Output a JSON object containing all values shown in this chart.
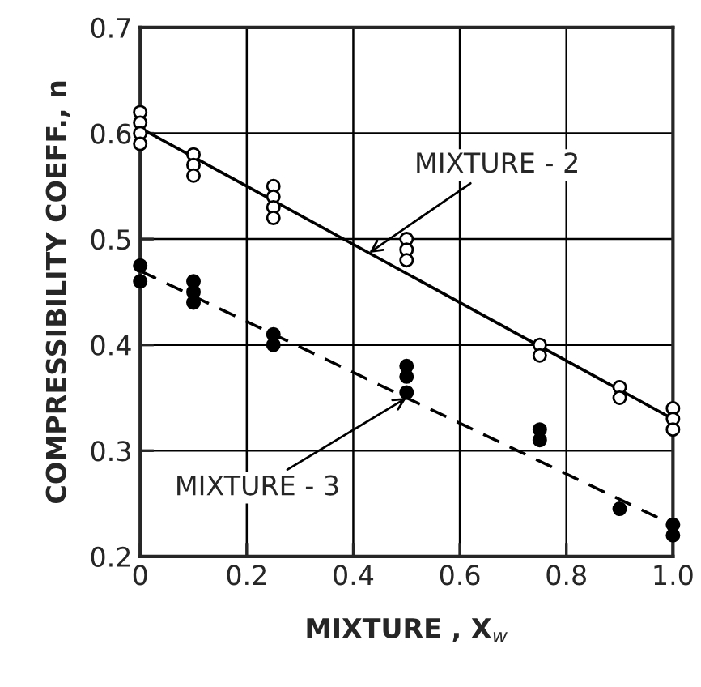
{
  "chart_data": {
    "type": "scatter",
    "xlabel": "MIXTURE , X$_{w}$",
    "ylabel": "COMPRESSIBILITY COEFF., n",
    "xlim": [
      0,
      1.0
    ],
    "ylim": [
      0.2,
      0.7
    ],
    "xticks": [
      0,
      0.2,
      0.4,
      0.6,
      0.8,
      {
        "value": 1.0,
        "label": "1.0"
      }
    ],
    "yticks": [
      0.2,
      0.3,
      0.4,
      0.5,
      0.6,
      0.7
    ],
    "grid": true,
    "series": [
      {
        "marker": "circle",
        "color": "#000000",
        "x": [
          0,
          0,
          0,
          0,
          0.1,
          0.1,
          0.1,
          0.25,
          0.25,
          0.25,
          0.25,
          0.5,
          0.5,
          0.5,
          0.75,
          0.75,
          0.9,
          0.9,
          1.0,
          1.0,
          1.0
        ],
        "values": [
          0.62,
          0.61,
          0.6,
          0.59,
          0.58,
          0.57,
          0.56,
          0.55,
          0.54,
          0.53,
          0.52,
          0.5,
          0.49,
          0.48,
          0.4,
          0.39,
          0.36,
          0.35,
          0.34,
          0.33,
          0.32
        ]
      },
      {
        "marker": "circle",
        "color": "#000000",
        "x": [
          0,
          0,
          0.1,
          0.1,
          0.1,
          0.25,
          0.25,
          0.5,
          0.5,
          0.5,
          0.75,
          0.75,
          0.9,
          1.0,
          1.0
        ],
        "values": [
          0.475,
          0.46,
          0.46,
          0.45,
          0.44,
          0.41,
          0.4,
          0.38,
          0.37,
          0.355,
          0.32,
          0.31,
          0.245,
          0.23,
          0.22
        ]
      },
      {
        "type": "line",
        "color": "#000000",
        "line_style": "solid",
        "x": [
          0,
          1.0
        ],
        "values": [
          0.605,
          0.33
        ]
      },
      {
        "type": "line",
        "color": "#000000",
        "line_style": "dashed",
        "x": [
          0,
          1.0
        ],
        "values": [
          0.47,
          0.23
        ]
      }
    ],
    "annotations": [
      {
        "text": "MIXTURE - 2",
        "x": 0.43,
        "y": 0.487
      },
      {
        "text": "MIXTURE - 3",
        "x": 0.5,
        "y": 0.35
      }
    ]
  }
}
